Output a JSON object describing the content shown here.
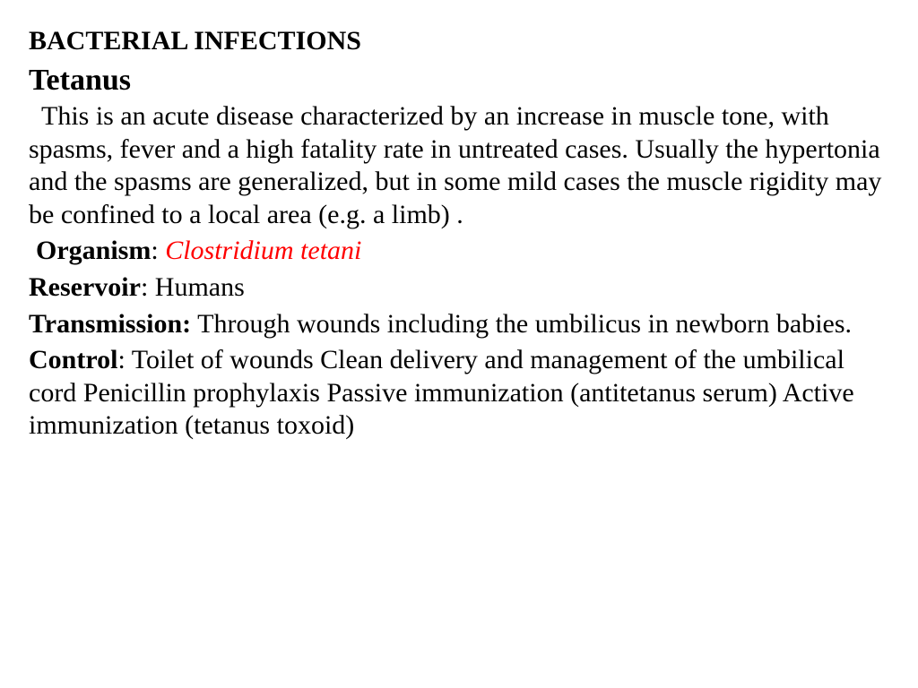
{
  "heading": "BACTERIAL INFECTIONS",
  "subheading": "Tetanus",
  "description": "This is an acute disease characterized by an increase in muscle tone, with spasms, fever and a high fatality rate in untreated cases. Usually the hypertonia and the spasms are generalized, but in some mild cases the muscle rigidity may be confined to a local area (e.g. a limb) .",
  "organism": {
    "label": "Organism",
    "sep": ": ",
    "value": "Clostridium tetani"
  },
  "reservoir": {
    "label": "Reservoir",
    "sep": ": ",
    "value": "Humans"
  },
  "transmission": {
    "label": "Transmission:",
    "sep": " ",
    "value": "Through wounds including the umbilicus in newborn babies."
  },
  "control": {
    "label": "Control",
    "sep": ": ",
    "value": "Toilet of wounds Clean delivery and management of the umbilical cord Penicillin prophylaxis Passive immunization (antitetanus serum) Active immunization (tetanus toxoid)"
  },
  "colors": {
    "text": "#000000",
    "highlight": "#ff0000",
    "background": "#ffffff"
  },
  "typography": {
    "heading_fontsize": 30,
    "subheading_fontsize": 34,
    "body_fontsize": 30,
    "font_family": "Times New Roman"
  }
}
